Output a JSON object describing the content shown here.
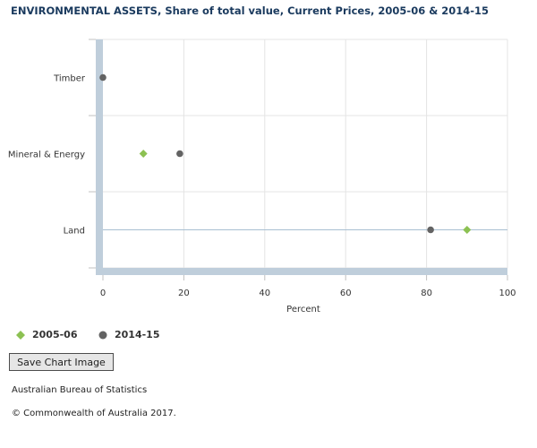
{
  "title": "ENVIRONMENTAL ASSETS, Share of total value, Current Prices, 2005-06 & 2014-15",
  "colors": {
    "series_2005": "#8cc152",
    "series_2014": "#636363",
    "axis_band": "#bfcedb"
  },
  "chart_data": {
    "type": "scatter",
    "categories": [
      "Timber",
      "Mineral & Energy",
      "Land"
    ],
    "series": [
      {
        "name": "2005-06",
        "marker": "diamond",
        "values": [
          null,
          10,
          90
        ]
      },
      {
        "name": "2014-15",
        "marker": "circle",
        "values": [
          0,
          19,
          81
        ]
      }
    ],
    "xlabel": "Percent",
    "xlim": [
      0,
      100
    ],
    "xticks": [
      0,
      20,
      40,
      60,
      80,
      100
    ],
    "grid": true,
    "legend_position": "bottom-left"
  },
  "button": {
    "save_label": "Save Chart Image"
  },
  "footer": {
    "source": "Australian Bureau of Statistics",
    "copyright": "© Commonwealth of Australia 2017."
  }
}
